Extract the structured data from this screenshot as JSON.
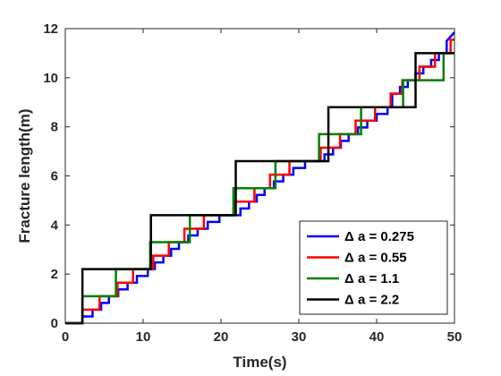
{
  "chart_data": {
    "type": "line",
    "xlabel": "Time(s)",
    "ylabel": "Fracture length(m)",
    "xlim": [
      0,
      50
    ],
    "ylim": [
      0,
      12
    ],
    "xticks": [
      "0",
      "10",
      "20",
      "30",
      "40",
      "50"
    ],
    "yticks": [
      "0",
      "2",
      "4",
      "6",
      "8",
      "10",
      "12"
    ],
    "grid": false,
    "legend_position": "bottom-right",
    "series": [
      {
        "name": "Δ a = 0.275",
        "color": "#0000ff",
        "points": [
          [
            0,
            0
          ],
          [
            2.2,
            0
          ],
          [
            2.2,
            0.275
          ],
          [
            3.5,
            0.275
          ],
          [
            3.5,
            0.55
          ],
          [
            4.6,
            0.55
          ],
          [
            4.6,
            0.825
          ],
          [
            5.6,
            0.825
          ],
          [
            5.6,
            1.1
          ],
          [
            6.8,
            1.1
          ],
          [
            6.8,
            1.375
          ],
          [
            8,
            1.375
          ],
          [
            8,
            1.65
          ],
          [
            9.2,
            1.65
          ],
          [
            9.2,
            1.925
          ],
          [
            10.6,
            1.925
          ],
          [
            10.6,
            2.2
          ],
          [
            11.5,
            2.2
          ],
          [
            11.5,
            2.475
          ],
          [
            12.6,
            2.475
          ],
          [
            12.6,
            2.75
          ],
          [
            13.6,
            2.75
          ],
          [
            13.6,
            3.025
          ],
          [
            14.6,
            3.025
          ],
          [
            14.6,
            3.3
          ],
          [
            15.8,
            3.3
          ],
          [
            15.8,
            3.575
          ],
          [
            17,
            3.575
          ],
          [
            17,
            3.85
          ],
          [
            18.3,
            3.85
          ],
          [
            18.3,
            4.125
          ],
          [
            19.8,
            4.125
          ],
          [
            19.8,
            4.4
          ],
          [
            22.5,
            4.4
          ],
          [
            22.5,
            4.675
          ],
          [
            23.6,
            4.675
          ],
          [
            23.6,
            4.95
          ],
          [
            24.6,
            4.95
          ],
          [
            24.6,
            5.225
          ],
          [
            25.6,
            5.225
          ],
          [
            25.6,
            5.5
          ],
          [
            26.8,
            5.5
          ],
          [
            26.8,
            5.775
          ],
          [
            28,
            5.775
          ],
          [
            28,
            6.05
          ],
          [
            29.3,
            6.05
          ],
          [
            29.3,
            6.325
          ],
          [
            30.8,
            6.325
          ],
          [
            30.8,
            6.6
          ],
          [
            33.3,
            6.6
          ],
          [
            33.3,
            6.875
          ],
          [
            34.4,
            6.875
          ],
          [
            34.4,
            7.15
          ],
          [
            35.4,
            7.15
          ],
          [
            35.4,
            7.425
          ],
          [
            36.4,
            7.425
          ],
          [
            36.4,
            7.7
          ],
          [
            37.6,
            7.7
          ],
          [
            37.6,
            7.975
          ],
          [
            38.8,
            7.975
          ],
          [
            38.8,
            8.25
          ],
          [
            40,
            8.25
          ],
          [
            40,
            8.525
          ],
          [
            41.4,
            8.525
          ],
          [
            41.4,
            8.8
          ],
          [
            42,
            8.8
          ],
          [
            42,
            9.35
          ],
          [
            43,
            9.35
          ],
          [
            43,
            9.625
          ],
          [
            44,
            9.625
          ],
          [
            44,
            9.9
          ],
          [
            45,
            9.9
          ],
          [
            45,
            10.175
          ],
          [
            46,
            10.175
          ],
          [
            46,
            10.45
          ],
          [
            47,
            10.45
          ],
          [
            47,
            10.725
          ],
          [
            48,
            10.725
          ],
          [
            48,
            11
          ],
          [
            49,
            11
          ],
          [
            49,
            11.5
          ],
          [
            50,
            11.85
          ]
        ]
      },
      {
        "name": "Δ a = 0.55",
        "color": "#ff0000",
        "points": [
          [
            0,
            0
          ],
          [
            2.2,
            0
          ],
          [
            2.2,
            0.55
          ],
          [
            4.4,
            0.55
          ],
          [
            4.4,
            1.1
          ],
          [
            6.7,
            1.1
          ],
          [
            6.7,
            1.65
          ],
          [
            8.7,
            1.65
          ],
          [
            8.7,
            2.2
          ],
          [
            11.3,
            2.2
          ],
          [
            11.3,
            2.75
          ],
          [
            13.3,
            2.75
          ],
          [
            13.3,
            3.3
          ],
          [
            15.3,
            3.3
          ],
          [
            15.3,
            3.85
          ],
          [
            17.8,
            3.85
          ],
          [
            17.8,
            4.4
          ],
          [
            21.8,
            4.4
          ],
          [
            21.8,
            4.95
          ],
          [
            24.3,
            4.95
          ],
          [
            24.3,
            5.5
          ],
          [
            26.3,
            5.5
          ],
          [
            26.3,
            6.05
          ],
          [
            28.8,
            6.05
          ],
          [
            28.8,
            6.6
          ],
          [
            32.8,
            6.6
          ],
          [
            32.8,
            7.15
          ],
          [
            35.3,
            7.15
          ],
          [
            35.3,
            7.7
          ],
          [
            37.3,
            7.7
          ],
          [
            37.3,
            8.25
          ],
          [
            39.8,
            8.25
          ],
          [
            39.8,
            8.8
          ],
          [
            41.8,
            8.8
          ],
          [
            41.8,
            9.35
          ],
          [
            43.3,
            9.35
          ],
          [
            43.3,
            9.9
          ],
          [
            45.5,
            9.9
          ],
          [
            45.5,
            10.45
          ],
          [
            47.5,
            10.45
          ],
          [
            47.5,
            11
          ],
          [
            49.5,
            11
          ],
          [
            49.5,
            11.55
          ],
          [
            50,
            11.55
          ]
        ]
      },
      {
        "name": "Δ a = 1.1",
        "color": "#008000",
        "points": [
          [
            0,
            0
          ],
          [
            2.2,
            0
          ],
          [
            2.2,
            1.1
          ],
          [
            5,
            1.1
          ],
          [
            5,
            1.1
          ],
          [
            6.5,
            1.1
          ],
          [
            6.5,
            2.2
          ],
          [
            10.9,
            2.2
          ],
          [
            10.9,
            3.3
          ],
          [
            16,
            3.3
          ],
          [
            16,
            4.4
          ],
          [
            21.6,
            4.4
          ],
          [
            21.6,
            5.5
          ],
          [
            27,
            5.5
          ],
          [
            27,
            6.6
          ],
          [
            32.6,
            6.6
          ],
          [
            32.6,
            7.7
          ],
          [
            38,
            7.7
          ],
          [
            38,
            8.8
          ],
          [
            43.4,
            8.8
          ],
          [
            43.4,
            9.9
          ],
          [
            48.6,
            9.9
          ],
          [
            48.6,
            11
          ],
          [
            50,
            11
          ]
        ]
      },
      {
        "name": "Δ a = 2.2",
        "color": "#000000",
        "points": [
          [
            0,
            0
          ],
          [
            2.2,
            0
          ],
          [
            2.2,
            2.2
          ],
          [
            11,
            2.2
          ],
          [
            11,
            4.4
          ],
          [
            21.9,
            4.4
          ],
          [
            21.9,
            6.6
          ],
          [
            33.8,
            6.6
          ],
          [
            33.8,
            8.8
          ],
          [
            45,
            8.8
          ],
          [
            45,
            11
          ],
          [
            50,
            11
          ]
        ]
      }
    ]
  }
}
